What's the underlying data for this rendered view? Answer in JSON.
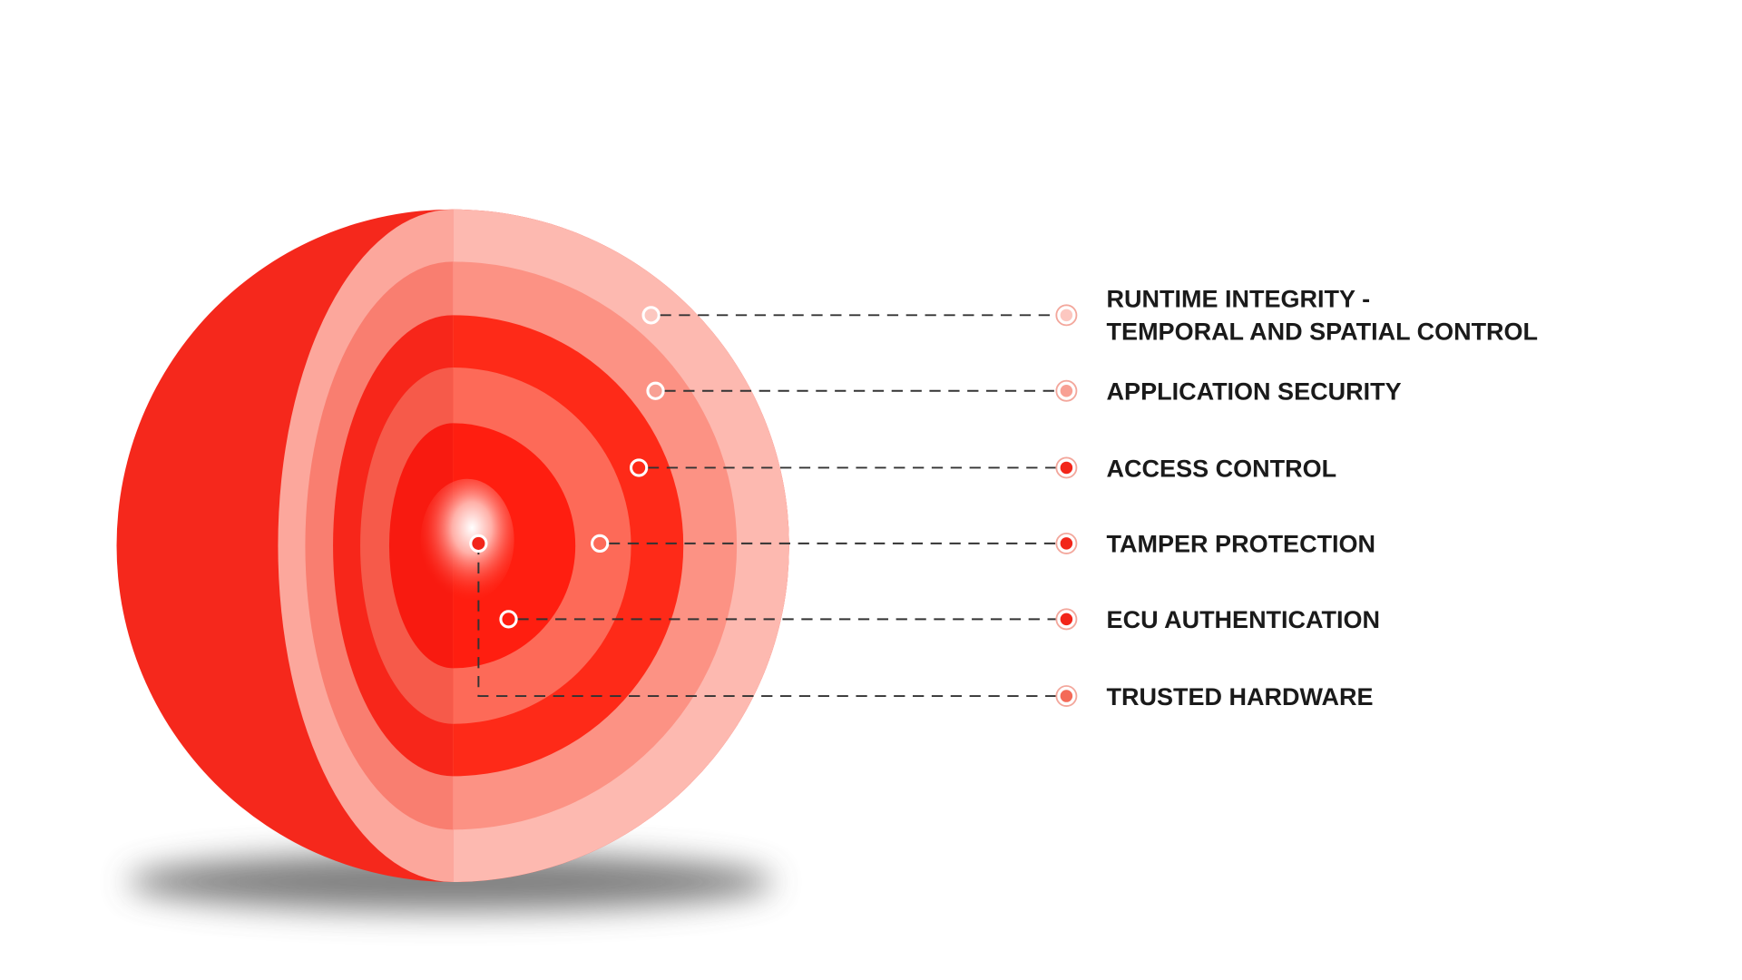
{
  "layers": [
    {
      "lines": [
        "RUNTIME INTEGRITY -",
        "TEMPORAL AND SPATIAL CONTROL"
      ]
    },
    {
      "lines": [
        "APPLICATION SECURITY"
      ]
    },
    {
      "lines": [
        "ACCESS CONTROL"
      ]
    },
    {
      "lines": [
        "TAMPER PROTECTION"
      ]
    },
    {
      "lines": [
        "ECU AUTHENTICATION"
      ]
    },
    {
      "lines": [
        "TRUSTED HARDWARE"
      ]
    }
  ]
}
